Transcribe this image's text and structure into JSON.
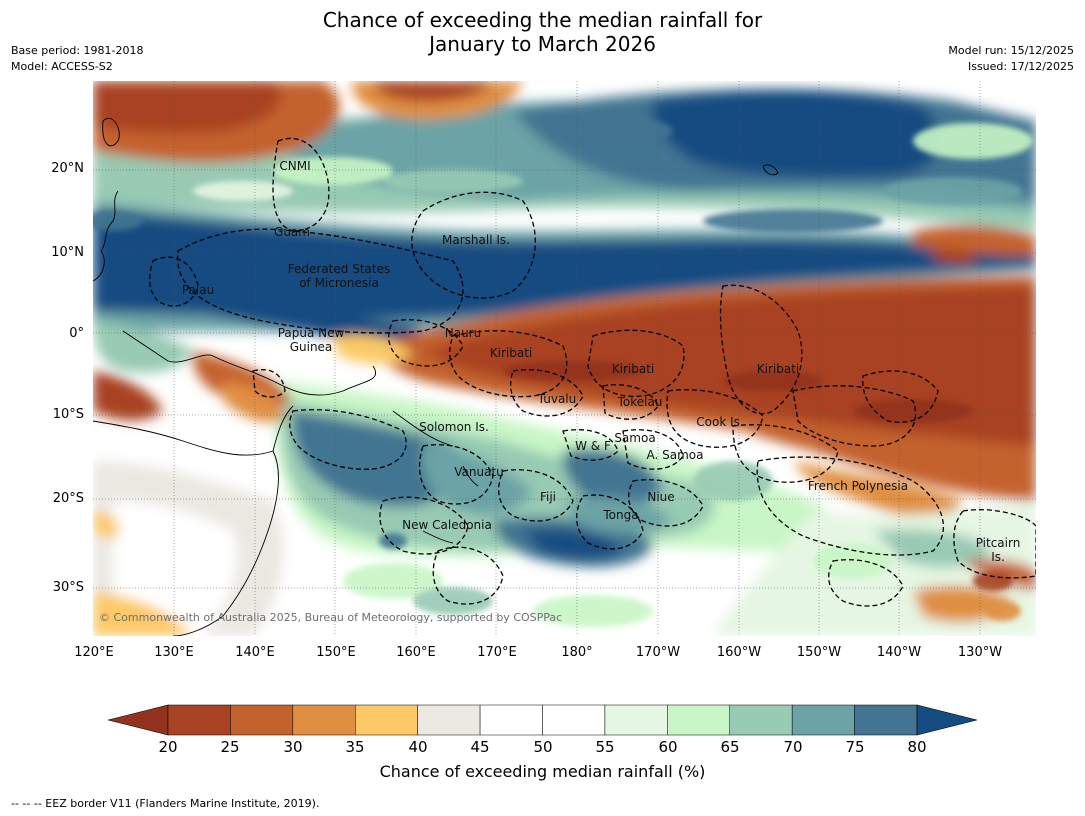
{
  "title_line1": "Chance of exceeding the median rainfall for",
  "title_line2": "January to March 2026",
  "meta_left": {
    "base_period": "Base period: 1981-2018",
    "model": "Model: ACCESS-S2"
  },
  "meta_right": {
    "model_run": "Model run: 15/12/2025",
    "issued": "Issued: 17/12/2025"
  },
  "lat_labels": [
    "20°N",
    "10°N",
    "0°",
    "10°S",
    "20°S",
    "30°S"
  ],
  "lon_labels": [
    "120°E",
    "130°E",
    "140°E",
    "150°E",
    "160°E",
    "170°E",
    "180°",
    "170°W",
    "160°W",
    "150°W",
    "140°W",
    "130°W"
  ],
  "places": {
    "cnmi": "CNMI",
    "guam": "Guam",
    "marshall": "Marshall Is.",
    "fsm_1": "Federated States",
    "fsm_2": "of Micronesia",
    "palau": "Palau",
    "png_1": "Papua New",
    "png_2": "Guinea",
    "nauru": "Nauru",
    "kiribati_w": "Kiribati",
    "kiribati_c": "Kiribati",
    "kiribati_e": "Kiribati",
    "tuvalu": "Tuvalu",
    "tokelau": "Tokelau",
    "cook": "Cook Is.",
    "solomon": "Solomon Is.",
    "samoa": "Samoa",
    "wf": "W & F",
    "asamoa": "A. Samoa",
    "vanuatu": "Vanuatu",
    "fiji": "Fiji",
    "niue": "Niue",
    "tonga": "Tonga",
    "french_poly": "French Polynesia",
    "new_caledonia": "New Caledonia",
    "pitcairn_1": "Pitcairn",
    "pitcairn_2": "Is."
  },
  "copyright": "© Commonwealth of Australia 2025, Bureau of Meteorology, supported by COSPPac",
  "colorbar": {
    "title": "Chance of exceeding median rainfall (%)",
    "ticks": [
      "20",
      "25",
      "30",
      "35",
      "40",
      "45",
      "50",
      "55",
      "60",
      "65",
      "70",
      "75",
      "80"
    ],
    "colors": [
      "#a94324",
      "#c4622d",
      "#e08f42",
      "#fcc966",
      "#ebe8e2",
      "#ffffff",
      "#ffffff",
      "#e6f6e4",
      "#c8f6c6",
      "#98cab4",
      "#6ca3a6",
      "#437592"
    ],
    "under_color": "#93331f",
    "over_color": "#154c82"
  },
  "footnote": "--  --  -- EEZ border V11 (Flanders Marine Institute, 2019)."
}
